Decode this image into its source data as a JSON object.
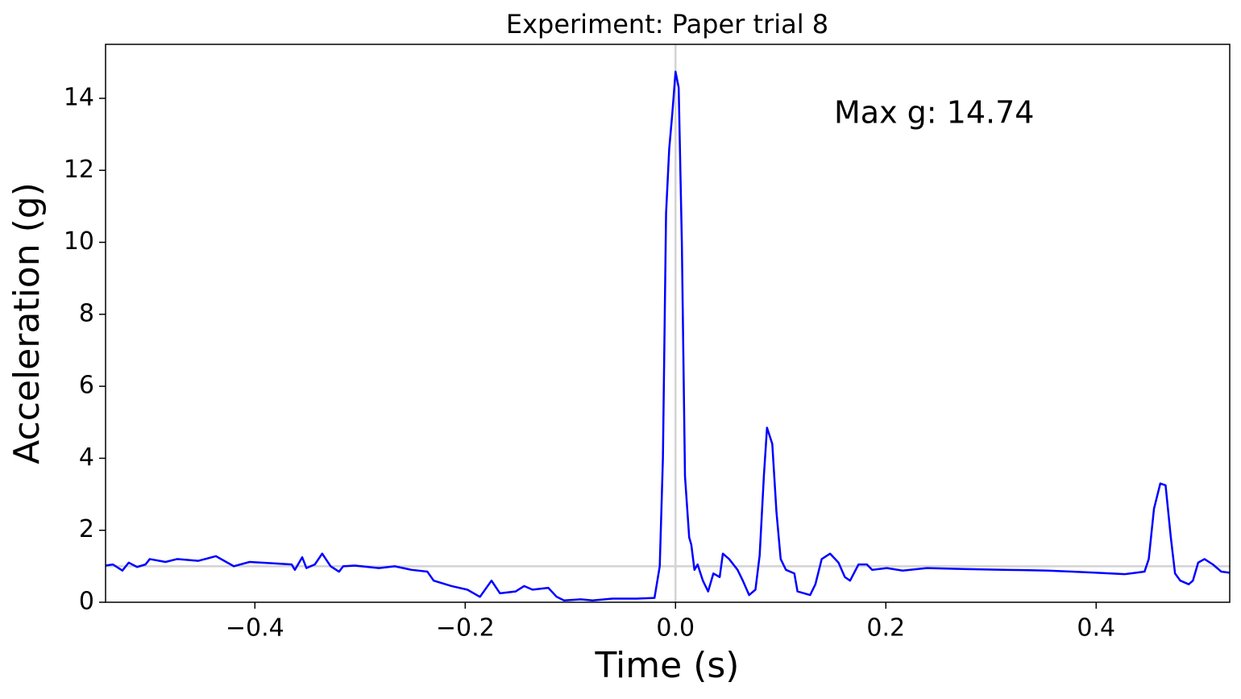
{
  "chart_data": {
    "type": "line",
    "title": "Experiment: Paper trial 8",
    "xlabel": "Time (s)",
    "ylabel": "Acceleration (g)",
    "annotation": "Max g: 14.74",
    "annotation_color": "#008000",
    "color": "#0000ff",
    "reference_lines": {
      "color": "#d3d3d3",
      "y": [
        1
      ],
      "x": [
        0
      ]
    },
    "xlim": [
      -0.542,
      0.527
    ],
    "ylim": [
      0,
      15.5
    ],
    "xticks": [
      {
        "value": -0.4,
        "label": "−0.4"
      },
      {
        "value": -0.2,
        "label": "−0.2"
      },
      {
        "value": 0,
        "label": "0.0"
      },
      0.2,
      0.4
    ],
    "yticks": [
      0,
      2,
      4,
      6,
      8,
      10,
      12,
      14
    ],
    "x": [
      -0.542,
      -0.535,
      -0.526,
      -0.52,
      -0.512,
      -0.504,
      -0.5,
      -0.485,
      -0.474,
      -0.454,
      -0.437,
      -0.42,
      -0.405,
      -0.382,
      -0.365,
      -0.362,
      -0.355,
      -0.351,
      -0.343,
      -0.336,
      -0.328,
      -0.32,
      -0.316,
      -0.305,
      -0.282,
      -0.267,
      -0.251,
      -0.236,
      -0.23,
      -0.213,
      -0.198,
      -0.186,
      -0.175,
      -0.167,
      -0.152,
      -0.144,
      -0.136,
      -0.121,
      -0.113,
      -0.106,
      -0.09,
      -0.079,
      -0.06,
      -0.037,
      -0.02,
      -0.015,
      -0.012,
      -0.009,
      -0.006,
      -0.003,
      0.0,
      0.003,
      0.006,
      0.009,
      0.013,
      0.015,
      0.018,
      0.021,
      0.026,
      0.031,
      0.036,
      0.042,
      0.045,
      0.051,
      0.059,
      0.064,
      0.07,
      0.076,
      0.08,
      0.084,
      0.087,
      0.092,
      0.096,
      0.1,
      0.105,
      0.113,
      0.116,
      0.128,
      0.133,
      0.139,
      0.147,
      0.155,
      0.161,
      0.166,
      0.174,
      0.182,
      0.187,
      0.201,
      0.216,
      0.239,
      0.277,
      0.316,
      0.354,
      0.377,
      0.4,
      0.427,
      0.438,
      0.446,
      0.45,
      0.455,
      0.461,
      0.466,
      0.471,
      0.475,
      0.48,
      0.488,
      0.492,
      0.497,
      0.503,
      0.511,
      0.519,
      0.527
    ],
    "values": [
      1.02,
      1.05,
      0.88,
      1.1,
      0.98,
      1.05,
      1.2,
      1.12,
      1.2,
      1.15,
      1.28,
      1.0,
      1.12,
      1.08,
      1.05,
      0.9,
      1.25,
      0.95,
      1.05,
      1.35,
      1.0,
      0.85,
      1.0,
      1.02,
      0.95,
      1.0,
      0.9,
      0.85,
      0.6,
      0.45,
      0.35,
      0.15,
      0.6,
      0.25,
      0.3,
      0.45,
      0.35,
      0.4,
      0.15,
      0.05,
      0.08,
      0.05,
      0.1,
      0.1,
      0.12,
      1.0,
      4.0,
      10.8,
      12.6,
      13.6,
      14.74,
      14.3,
      10.0,
      3.5,
      1.8,
      1.6,
      0.9,
      1.05,
      0.6,
      0.3,
      0.8,
      0.7,
      1.35,
      1.2,
      0.9,
      0.6,
      0.2,
      0.35,
      1.3,
      3.5,
      4.85,
      4.4,
      2.5,
      1.2,
      0.9,
      0.8,
      0.3,
      0.2,
      0.5,
      1.2,
      1.35,
      1.1,
      0.7,
      0.6,
      1.05,
      1.05,
      0.9,
      0.95,
      0.88,
      0.95,
      0.92,
      0.9,
      0.88,
      0.85,
      0.82,
      0.78,
      0.82,
      0.85,
      1.2,
      2.6,
      3.3,
      3.25,
      1.8,
      0.8,
      0.6,
      0.5,
      0.6,
      1.1,
      1.2,
      1.05,
      0.85,
      0.82
    ]
  }
}
